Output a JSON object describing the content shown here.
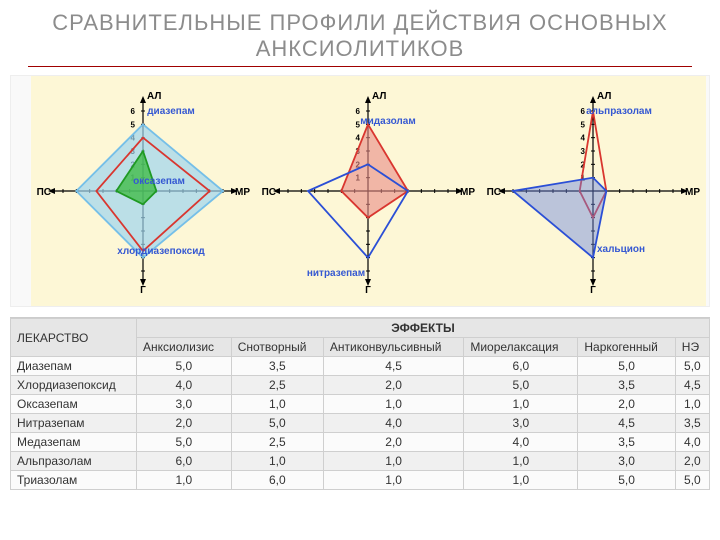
{
  "title": "СРАВНИТЕЛЬНЫЕ ПРОФИЛИ ДЕЙСТВИЯ ОСНОВНЫХ АНКСИОЛИТИКОВ",
  "title_color": "#8c8c8c",
  "rule_color": "#a00000",
  "chart_bg": "#fdf7d6",
  "radar": {
    "axis_labels": {
      "top": "АЛ",
      "right": "МР",
      "bottom": "Г",
      "left": "ПС"
    },
    "axis_max": 6,
    "ticks": [
      1,
      2,
      3,
      4,
      5,
      6
    ],
    "axis_color": "#000000",
    "plots": [
      {
        "series": [
          {
            "name": "диазепам",
            "color": "#75bfe8",
            "fill": "#9ed4ee",
            "opacity": 0.7,
            "values": {
              "top": 5.0,
              "right": 6.0,
              "bottom": 5.0,
              "left": 5.0
            },
            "label_pos": {
              "x": 140,
              "y": 38
            }
          },
          {
            "name": "хлордиазепоксид",
            "color": "#d9362f",
            "fill": "none",
            "opacity": 1,
            "values": {
              "top": 4.0,
              "right": 5.0,
              "bottom": 4.5,
              "left": 3.5
            },
            "label_pos": {
              "x": 130,
              "y": 178
            }
          },
          {
            "name": "оксазепам",
            "color": "#1f9a23",
            "fill": "#3ab93f",
            "opacity": 0.75,
            "values": {
              "top": 3.0,
              "right": 1.0,
              "bottom": 1.0,
              "left": 2.0
            },
            "label_pos": {
              "x": 128,
              "y": 108
            }
          }
        ]
      },
      {
        "series": [
          {
            "name": "мидазолам",
            "color": "#d9362f",
            "fill": "#e98b86",
            "opacity": 0.6,
            "values": {
              "top": 5.0,
              "right": 3.0,
              "bottom": 2.0,
              "left": 2.0
            },
            "label_pos": {
              "x": 132,
              "y": 48
            }
          },
          {
            "name": "нитразепам",
            "color": "#2b4fd6",
            "fill": "none",
            "opacity": 1,
            "values": {
              "top": 2.0,
              "right": 3.0,
              "bottom": 5.0,
              "left": 4.5
            },
            "label_pos": {
              "x": 80,
              "y": 200
            }
          }
        ]
      },
      {
        "series": [
          {
            "name": "альпразолам",
            "color": "#d9362f",
            "fill": "none",
            "opacity": 1,
            "values": {
              "top": 6.0,
              "right": 1.0,
              "bottom": 2.0,
              "left": 1.0
            },
            "label_pos": {
              "x": 138,
              "y": 38
            }
          },
          {
            "name": "хальцион",
            "color": "#2b4fd6",
            "fill": "#6b84e0",
            "opacity": 0.45,
            "values": {
              "top": 1.0,
              "right": 1.0,
              "bottom": 5.0,
              "left": 6.0
            },
            "label_pos": {
              "x": 140,
              "y": 176
            }
          }
        ]
      }
    ]
  },
  "table": {
    "drug_header": "ЛЕКАРСТВО",
    "effects_header": "ЭФФЕКТЫ",
    "columns": [
      "Анксиолизис",
      "Снотворный",
      "Антиконвульсивный",
      "Миорелаксация",
      "Наркогенный",
      "НЭ"
    ],
    "rows": [
      {
        "drug": "Диазепам",
        "vals": [
          "5,0",
          "3,5",
          "4,5",
          "6,0",
          "5,0",
          "5,0"
        ]
      },
      {
        "drug": "Хлордиазепоксид",
        "vals": [
          "4,0",
          "2,5",
          "2,0",
          "5,0",
          "3,5",
          "4,5"
        ]
      },
      {
        "drug": "Оксазепам",
        "vals": [
          "3,0",
          "1,0",
          "1,0",
          "1,0",
          "2,0",
          "1,0"
        ]
      },
      {
        "drug": "Нитразепам",
        "vals": [
          "2,0",
          "5,0",
          "4,0",
          "3,0",
          "4,5",
          "3,5"
        ]
      },
      {
        "drug": "Медазепам",
        "vals": [
          "5,0",
          "2,5",
          "2,0",
          "4,0",
          "3,5",
          "4,0"
        ]
      },
      {
        "drug": "Альпразолам",
        "vals": [
          "6,0",
          "1,0",
          "1,0",
          "1,0",
          "3,0",
          "2,0"
        ]
      },
      {
        "drug": "Триазолам",
        "vals": [
          "1,0",
          "6,0",
          "1,0",
          "1,0",
          "5,0",
          "5,0"
        ]
      }
    ],
    "header_bg": "#e6e6e6",
    "row_alt_bg": "#f0f0f0",
    "border_color": "#cfcfcf"
  }
}
